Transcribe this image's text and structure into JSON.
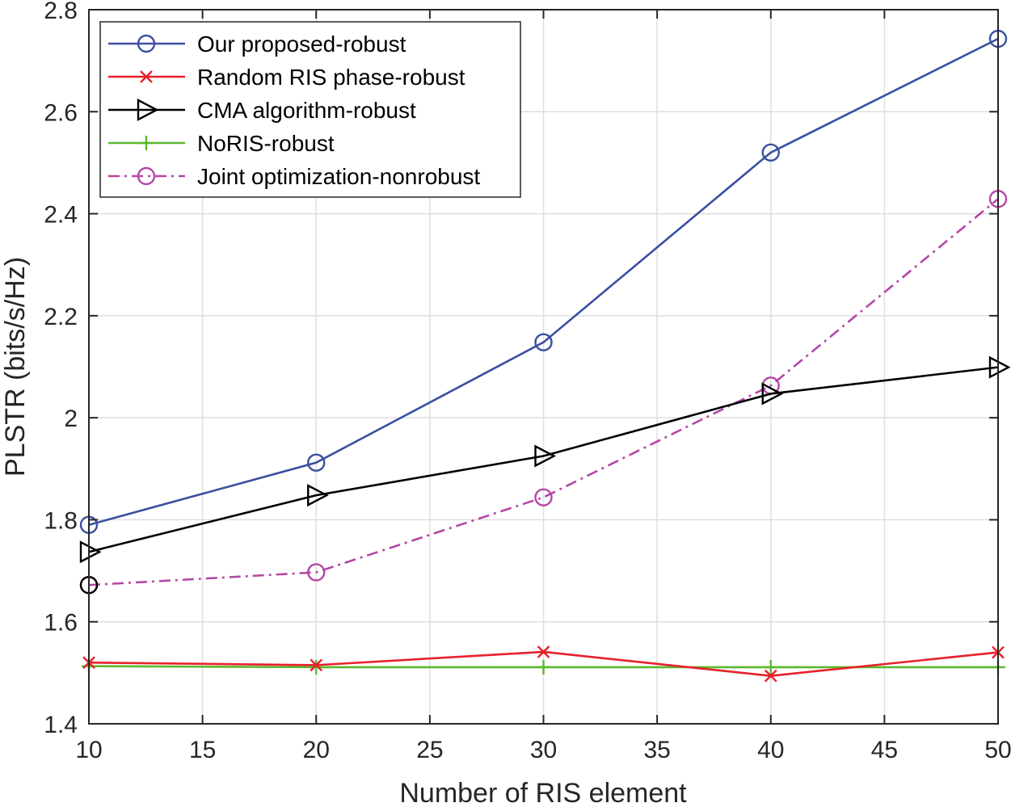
{
  "chart_data": {
    "type": "line",
    "title": "",
    "xlabel": "Number of RIS element",
    "ylabel": "PLSTR (bits/s/Hz)",
    "xlim": [
      10,
      50
    ],
    "ylim": [
      1.4,
      2.8
    ],
    "x": [
      10,
      20,
      30,
      40,
      50
    ],
    "xticks": [
      10,
      15,
      20,
      25,
      30,
      35,
      40,
      45,
      50
    ],
    "xtick_labels": [
      "10",
      "15",
      "20",
      "25",
      "30",
      "35",
      "40",
      "45",
      "50"
    ],
    "yticks": [
      1.4,
      1.6,
      1.8,
      2.0,
      2.2,
      2.4,
      2.6,
      2.8
    ],
    "ytick_labels": [
      "1.4",
      "1.6",
      "1.8",
      "2",
      "2.2",
      "2.4",
      "2.6",
      "2.8"
    ],
    "grid": true,
    "legend_position": "top-left",
    "series": [
      {
        "name": "Our proposed-robust",
        "values": [
          1.79,
          1.912,
          2.148,
          2.52,
          2.743
        ],
        "color": "#3a4fa0",
        "marker": "circle",
        "dash": "solid"
      },
      {
        "name": "Random RIS phase-robust",
        "values": [
          1.52,
          1.515,
          1.541,
          1.494,
          1.54
        ],
        "color": "#e8212b",
        "marker": "x",
        "dash": "solid"
      },
      {
        "name": "CMA algorithm-robust",
        "values": [
          1.737,
          1.848,
          1.925,
          2.047,
          2.099
        ],
        "color": "#000000",
        "marker": "triangle-right",
        "dash": "solid"
      },
      {
        "name": "NoRIS-robust",
        "values": [
          1.513,
          1.511,
          1.511,
          1.511,
          1.511
        ],
        "color": "#5cb82e",
        "marker": "plus",
        "dash": "solid"
      },
      {
        "name": "Joint optimization-nonrobust",
        "values": [
          1.672,
          1.697,
          1.844,
          2.063,
          2.429
        ],
        "color": "#b447a6",
        "marker": "circle",
        "dash": "dashdot"
      }
    ],
    "annotations": [
      {
        "x": 10,
        "y": 1.672,
        "marker": "circle",
        "color": "#000000"
      }
    ]
  }
}
